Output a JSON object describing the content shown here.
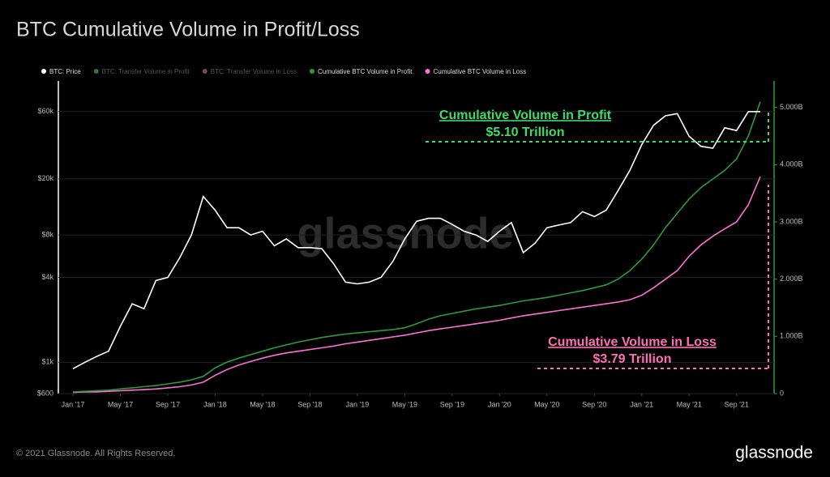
{
  "chart_data": {
    "type": "line",
    "title": "BTC Cumulative Volume in Profit/Loss",
    "x": [
      "2017-01",
      "2017-02",
      "2017-03",
      "2017-04",
      "2017-05",
      "2017-06",
      "2017-07",
      "2017-08",
      "2017-09",
      "2017-10",
      "2017-11",
      "2017-12",
      "2018-01",
      "2018-02",
      "2018-03",
      "2018-04",
      "2018-05",
      "2018-06",
      "2018-07",
      "2018-08",
      "2018-09",
      "2018-10",
      "2018-11",
      "2018-12",
      "2019-01",
      "2019-02",
      "2019-03",
      "2019-04",
      "2019-05",
      "2019-06",
      "2019-07",
      "2019-08",
      "2019-09",
      "2019-10",
      "2019-11",
      "2019-12",
      "2020-01",
      "2020-02",
      "2020-03",
      "2020-04",
      "2020-05",
      "2020-06",
      "2020-07",
      "2020-08",
      "2020-09",
      "2020-10",
      "2020-11",
      "2020-12",
      "2021-01",
      "2021-02",
      "2021-03",
      "2021-04",
      "2021-05",
      "2021-06",
      "2021-07",
      "2021-08",
      "2021-09",
      "2021-10",
      "2021-11"
    ],
    "series": [
      {
        "name": "BTC: Price",
        "color": "#ffffff",
        "axis": "y",
        "values": [
          900,
          1000,
          1100,
          1200,
          1800,
          2600,
          2400,
          3800,
          4000,
          5500,
          8000,
          15000,
          12000,
          9000,
          9000,
          8000,
          8500,
          6700,
          7500,
          6500,
          6500,
          6400,
          5000,
          3700,
          3600,
          3700,
          4000,
          5200,
          7500,
          10000,
          10500,
          10500,
          9500,
          8500,
          8000,
          7200,
          8500,
          9800,
          6000,
          7000,
          9000,
          9400,
          9800,
          11700,
          10800,
          12000,
          16500,
          23000,
          35000,
          48000,
          56000,
          58000,
          40000,
          34000,
          33000,
          46000,
          44000,
          60000,
          60000
        ]
      },
      {
        "name": "Cumulative BTC Volume in Profit",
        "color": "#2e9a3a",
        "axis": "y2",
        "values": [
          0.03,
          0.04,
          0.05,
          0.06,
          0.08,
          0.1,
          0.12,
          0.14,
          0.17,
          0.2,
          0.24,
          0.3,
          0.45,
          0.55,
          0.62,
          0.68,
          0.74,
          0.8,
          0.85,
          0.9,
          0.94,
          0.98,
          1.01,
          1.04,
          1.06,
          1.08,
          1.1,
          1.12,
          1.15,
          1.22,
          1.3,
          1.36,
          1.4,
          1.44,
          1.48,
          1.51,
          1.54,
          1.58,
          1.62,
          1.65,
          1.68,
          1.72,
          1.76,
          1.8,
          1.85,
          1.9,
          2.0,
          2.15,
          2.35,
          2.6,
          2.9,
          3.15,
          3.4,
          3.6,
          3.75,
          3.9,
          4.1,
          4.5,
          5.1
        ]
      },
      {
        "name": "Cumulative BTC Volume in Loss",
        "color": "#ff6fd8",
        "axis": "y2",
        "values": [
          0.02,
          0.03,
          0.03,
          0.04,
          0.05,
          0.06,
          0.07,
          0.08,
          0.1,
          0.12,
          0.15,
          0.2,
          0.32,
          0.42,
          0.5,
          0.56,
          0.62,
          0.67,
          0.71,
          0.74,
          0.77,
          0.8,
          0.83,
          0.87,
          0.9,
          0.93,
          0.96,
          0.99,
          1.02,
          1.06,
          1.1,
          1.13,
          1.16,
          1.19,
          1.22,
          1.25,
          1.28,
          1.32,
          1.36,
          1.39,
          1.42,
          1.45,
          1.48,
          1.51,
          1.54,
          1.57,
          1.6,
          1.64,
          1.72,
          1.85,
          2.0,
          2.15,
          2.4,
          2.6,
          2.75,
          2.88,
          3.0,
          3.3,
          3.79
        ]
      }
    ],
    "legend_inactive": [
      {
        "name": "BTC: Transfer Volume in Profit",
        "color": "#3f6e3f"
      },
      {
        "name": "BTC: Transfer Volume in Loss",
        "color": "#7a4a4a"
      }
    ],
    "xticks": [
      {
        "value": "2017-01",
        "label": "Jan '17"
      },
      {
        "value": "2017-05",
        "label": "May '17"
      },
      {
        "value": "2017-09",
        "label": "Sep '17"
      },
      {
        "value": "2018-01",
        "label": "Jan '18"
      },
      {
        "value": "2018-05",
        "label": "May '18"
      },
      {
        "value": "2018-09",
        "label": "Sep '18"
      },
      {
        "value": "2019-01",
        "label": "Jan '19"
      },
      {
        "value": "2019-05",
        "label": "May '19"
      },
      {
        "value": "2019-09",
        "label": "Sep '19"
      },
      {
        "value": "2020-01",
        "label": "Jan '20"
      },
      {
        "value": "2020-05",
        "label": "May '20"
      },
      {
        "value": "2020-09",
        "label": "Sep '20"
      },
      {
        "value": "2021-01",
        "label": "Jan '21"
      },
      {
        "value": "2021-05",
        "label": "May '21"
      },
      {
        "value": "2021-09",
        "label": "Sep '21"
      }
    ],
    "ylog": true,
    "ylim": [
      600,
      95000
    ],
    "yticks": [
      {
        "value": 600,
        "label": "$600"
      },
      {
        "value": 1000,
        "label": "$1k"
      },
      {
        "value": 4000,
        "label": "$4k"
      },
      {
        "value": 8000,
        "label": "$8k"
      },
      {
        "value": 20000,
        "label": "$20k"
      },
      {
        "value": 60000,
        "label": "$60k"
      }
    ],
    "y2lim": [
      0,
      5.42
    ],
    "y2ticks": [
      0,
      {
        "value": 1,
        "label": "1.000B"
      },
      {
        "value": 2,
        "label": "2.000B"
      },
      {
        "value": 3,
        "label": "3.000B"
      },
      {
        "value": 4,
        "label": "4.000B"
      },
      {
        "value": 5,
        "label": "5.000B"
      }
    ],
    "grid": true,
    "annotations": [
      {
        "title": "Cumulative Volume in Profit",
        "value": "$5.10 Trillion",
        "color": "#3ddc6a"
      },
      {
        "title": "Cumulative Volume in Loss",
        "value": "$3.79 Trillion",
        "color": "#ff6fb5"
      }
    ]
  },
  "watermark": "glassnode",
  "footer": {
    "copyright": "© 2021 Glassnode. All Rights Reserved.",
    "logo": "glassnode"
  }
}
